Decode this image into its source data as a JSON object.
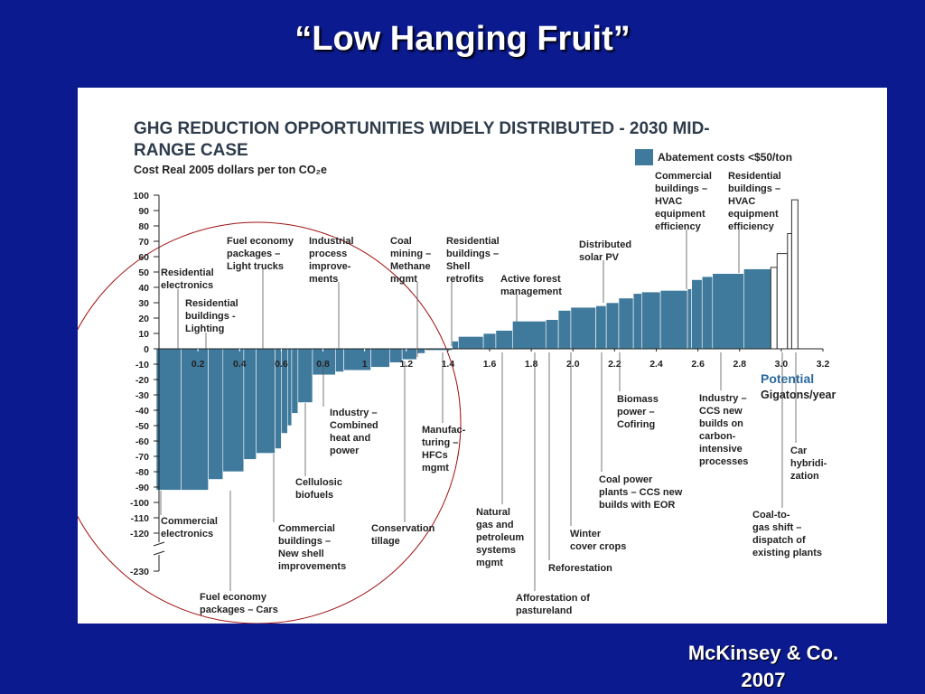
{
  "slide": {
    "title": "“Low Hanging Fruit”",
    "footer": [
      "McKinsey & Co.",
      "2007"
    ]
  },
  "chart_data": {
    "type": "bar",
    "title": [
      "GHG REDUCTION OPPORTUNITIES WIDELY DISTRIBUTED - 2030 MID-",
      "RANGE CASE"
    ],
    "subtitle": "Cost Real 2005 dollars per ton CO₂e",
    "xlabel": [
      "Potential",
      "Gigatons/year"
    ],
    "xlim": [
      0,
      3.2
    ],
    "xticks": [
      0.2,
      0.4,
      0.6,
      0.8,
      1.0,
      1.2,
      1.4,
      1.6,
      1.8,
      {
        "value": 2,
        "label": "2.0"
      },
      2.2,
      2.4,
      2.6,
      2.8,
      {
        "value": 3,
        "label": "3.0"
      },
      3.2
    ],
    "ylim": [
      -120,
      100
    ],
    "axis_break": [
      -120,
      -230
    ],
    "yticks": [
      100,
      90,
      80,
      70,
      60,
      50,
      40,
      30,
      20,
      10,
      0,
      -10,
      -20,
      -30,
      -40,
      -50,
      -60,
      -70,
      -80,
      -90,
      -100,
      -110,
      -120,
      -230
    ],
    "series": [
      {
        "name": "Abatement costs <$50/ton",
        "color": "#3f7a9c",
        "bins": [
          0,
          0.12,
          0.25,
          0.32,
          0.42,
          0.48,
          0.57,
          0.6,
          0.63,
          0.65,
          0.68,
          0.75,
          0.86,
          0.9,
          1.03,
          1.12,
          1.18,
          1.25,
          1.29,
          1.42,
          1.45,
          1.57,
          1.63,
          1.71,
          1.87,
          1.93,
          1.99,
          2.11,
          2.16,
          2.22,
          2.29,
          2.33,
          2.42,
          2.55,
          2.57,
          2.62,
          2.67,
          2.82,
          2.95
        ],
        "values": [
          -92,
          -92,
          -85,
          -80,
          -72,
          -68,
          -65,
          -55,
          -50,
          -42,
          -35,
          -17,
          -15,
          -14,
          -12,
          -9,
          -7,
          -3,
          -1,
          5,
          8,
          10,
          12,
          18,
          19,
          25,
          27,
          28,
          30,
          33,
          36,
          37,
          38,
          39,
          45,
          47,
          49,
          52
        ]
      },
      {
        "color": "#ffffff",
        "bins": [
          2.95,
          2.98,
          3.03,
          3.05,
          3.08
        ],
        "values": [
          53,
          62,
          75,
          97
        ]
      }
    ],
    "annotations": [
      {
        "lines": [
          "Residential",
          "electronics"
        ]
      },
      {
        "lines": [
          "Residential",
          "buildings -",
          "Lighting"
        ]
      },
      {
        "lines": [
          "Fuel economy",
          "packages –",
          "Light trucks"
        ]
      },
      {
        "lines": [
          "Industrial",
          "process",
          "improve-",
          "ments"
        ]
      },
      {
        "lines": [
          "Coal",
          "mining –",
          "Methane",
          "mgmt"
        ]
      },
      {
        "lines": [
          "Residential",
          "buildings –",
          "Shell",
          "retrofits"
        ]
      },
      {
        "lines": [
          "Active forest",
          "management"
        ]
      },
      {
        "lines": [
          "Distributed",
          "solar PV"
        ]
      },
      {
        "lines": [
          "Commercial",
          "buildings –",
          "HVAC",
          "equipment",
          "efficiency"
        ]
      },
      {
        "lines": [
          "Residential",
          "buildings –",
          "HVAC",
          "equipment",
          "efficiency"
        ]
      },
      {
        "lines": [
          "Industry –",
          "Combined",
          "heat and",
          "power"
        ]
      },
      {
        "lines": [
          "Cellulosic",
          "biofuels"
        ]
      },
      {
        "lines": [
          "Commercial",
          "buildings –",
          "New shell",
          "improvements"
        ]
      },
      {
        "lines": [
          "Conservation",
          "tillage"
        ]
      },
      {
        "lines": [
          "Manufac-",
          "turing –",
          "HFCs",
          "mgmt"
        ]
      },
      {
        "lines": [
          "Commercial",
          "electronics"
        ]
      },
      {
        "lines": [
          "Fuel economy",
          "packages – Cars"
        ]
      },
      {
        "lines": [
          "Natural",
          "gas and",
          "petroleum",
          "systems",
          "mgmt"
        ]
      },
      {
        "lines": [
          "Afforestation of",
          "pastureland"
        ]
      },
      {
        "lines": [
          "Reforestation"
        ]
      },
      {
        "lines": [
          "Winter",
          "cover crops"
        ]
      },
      {
        "lines": [
          "Coal power",
          "plants – CCS new",
          "builds with EOR"
        ]
      },
      {
        "lines": [
          "Biomass",
          "power –",
          "Cofiring"
        ]
      },
      {
        "lines": [
          "Industry  –",
          "CCS  new",
          "builds on",
          "carbon-",
          "intensive",
          "processes"
        ]
      },
      {
        "lines": [
          "Coal-to-",
          "gas shift –",
          "dispatch of",
          "existing plants"
        ]
      },
      {
        "lines": [
          "Car",
          "hybridi-",
          "zation"
        ]
      }
    ]
  }
}
